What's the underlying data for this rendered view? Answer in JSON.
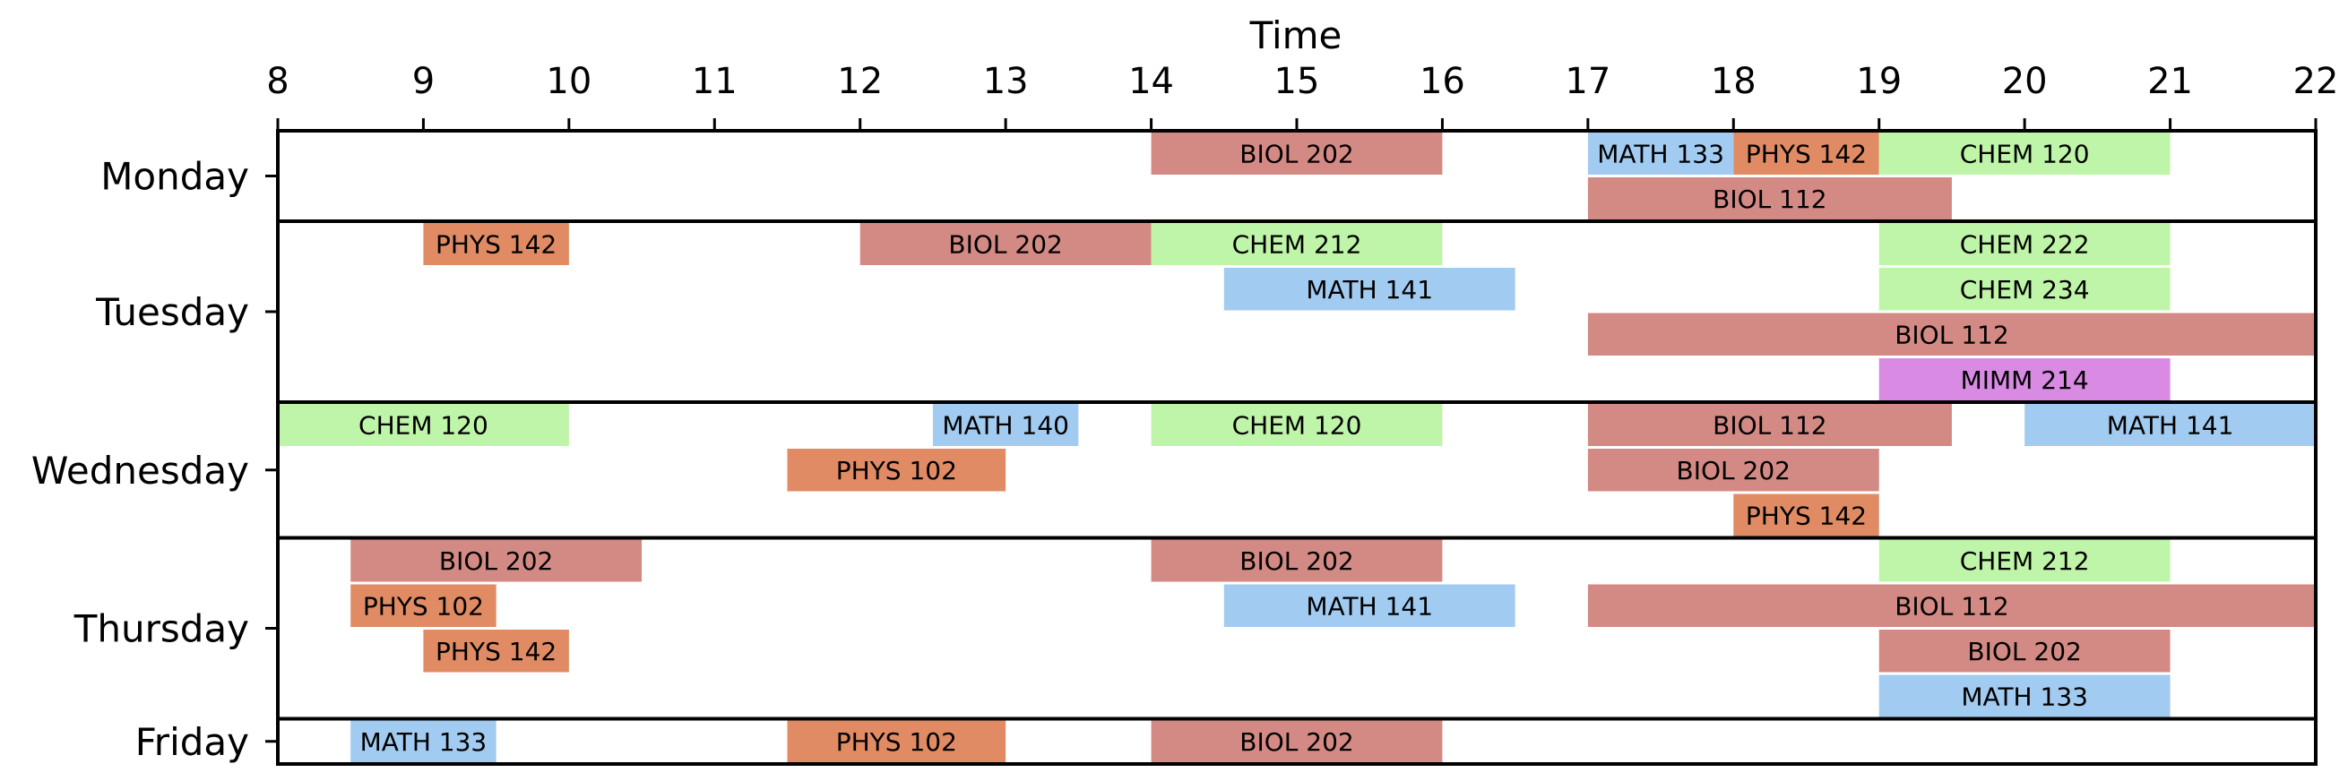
{
  "chart_data": {
    "type": "bar",
    "orientation": "horizontal-timeline",
    "xlabel": "Time",
    "xlim": [
      8,
      22
    ],
    "xticks": [
      "8",
      "9",
      "10",
      "11",
      "12",
      "13",
      "14",
      "15",
      "16",
      "17",
      "18",
      "19",
      "20",
      "21",
      "22"
    ],
    "days": [
      {
        "name": "Monday",
        "rows": 2
      },
      {
        "name": "Tuesday",
        "rows": 4
      },
      {
        "name": "Wednesday",
        "rows": 3
      },
      {
        "name": "Thursday",
        "rows": 4
      },
      {
        "name": "Friday",
        "rows": 1
      }
    ],
    "colors": {
      "BIOL": "#d48a84",
      "PHYS": "#e08b64",
      "CHEM": "#bff5a8",
      "MATH": "#a2cbf1",
      "MIMM": "#d98ae3"
    },
    "events": [
      {
        "day": "Monday",
        "row": 0,
        "course": "BIOL 202",
        "start": 14,
        "end": 16
      },
      {
        "day": "Monday",
        "row": 0,
        "course": "MATH 133",
        "start": 17,
        "end": 18
      },
      {
        "day": "Monday",
        "row": 0,
        "course": "PHYS 142",
        "start": 18,
        "end": 19
      },
      {
        "day": "Monday",
        "row": 0,
        "course": "CHEM 120",
        "start": 19,
        "end": 21
      },
      {
        "day": "Monday",
        "row": 1,
        "course": "BIOL 112",
        "start": 17,
        "end": 19.5
      },
      {
        "day": "Tuesday",
        "row": 0,
        "course": "PHYS 142",
        "start": 9,
        "end": 10
      },
      {
        "day": "Tuesday",
        "row": 0,
        "course": "BIOL 202",
        "start": 12,
        "end": 14
      },
      {
        "day": "Tuesday",
        "row": 0,
        "course": "CHEM 212",
        "start": 14,
        "end": 16
      },
      {
        "day": "Tuesday",
        "row": 0,
        "course": "CHEM 222",
        "start": 19,
        "end": 21
      },
      {
        "day": "Tuesday",
        "row": 1,
        "course": "MATH 141",
        "start": 14.5,
        "end": 16.5
      },
      {
        "day": "Tuesday",
        "row": 1,
        "course": "CHEM 234",
        "start": 19,
        "end": 21
      },
      {
        "day": "Tuesday",
        "row": 2,
        "course": "BIOL 112",
        "start": 17,
        "end": 22
      },
      {
        "day": "Tuesday",
        "row": 3,
        "course": "MIMM 214",
        "start": 19,
        "end": 21
      },
      {
        "day": "Wednesday",
        "row": 0,
        "course": "CHEM 120",
        "start": 8,
        "end": 10
      },
      {
        "day": "Wednesday",
        "row": 0,
        "course": "MATH 140",
        "start": 12.5,
        "end": 13.5
      },
      {
        "day": "Wednesday",
        "row": 0,
        "course": "CHEM 120",
        "start": 14,
        "end": 16
      },
      {
        "day": "Wednesday",
        "row": 0,
        "course": "BIOL 112",
        "start": 17,
        "end": 19.5
      },
      {
        "day": "Wednesday",
        "row": 0,
        "course": "MATH 141",
        "start": 20,
        "end": 22
      },
      {
        "day": "Wednesday",
        "row": 1,
        "course": "PHYS 102",
        "start": 11.5,
        "end": 13
      },
      {
        "day": "Wednesday",
        "row": 1,
        "course": "BIOL 202",
        "start": 17,
        "end": 19
      },
      {
        "day": "Wednesday",
        "row": 2,
        "course": "PHYS 142",
        "start": 18,
        "end": 19
      },
      {
        "day": "Thursday",
        "row": 0,
        "course": "BIOL 202",
        "start": 8.5,
        "end": 10.5
      },
      {
        "day": "Thursday",
        "row": 0,
        "course": "BIOL 202",
        "start": 14,
        "end": 16
      },
      {
        "day": "Thursday",
        "row": 0,
        "course": "CHEM 212",
        "start": 19,
        "end": 21
      },
      {
        "day": "Thursday",
        "row": 1,
        "course": "PHYS 102",
        "start": 8.5,
        "end": 9.5
      },
      {
        "day": "Thursday",
        "row": 1,
        "course": "MATH 141",
        "start": 14.5,
        "end": 16.5
      },
      {
        "day": "Thursday",
        "row": 1,
        "course": "BIOL 112",
        "start": 17,
        "end": 22
      },
      {
        "day": "Thursday",
        "row": 2,
        "course": "PHYS 142",
        "start": 9,
        "end": 10
      },
      {
        "day": "Thursday",
        "row": 2,
        "course": "BIOL 202",
        "start": 19,
        "end": 21
      },
      {
        "day": "Thursday",
        "row": 3,
        "course": "MATH 133",
        "start": 19,
        "end": 21
      },
      {
        "day": "Friday",
        "row": 0,
        "course": "MATH 133",
        "start": 8.5,
        "end": 9.5
      },
      {
        "day": "Friday",
        "row": 0,
        "course": "PHYS 102",
        "start": 11.5,
        "end": 13
      },
      {
        "day": "Friday",
        "row": 0,
        "course": "BIOL 202",
        "start": 14,
        "end": 16
      }
    ]
  }
}
